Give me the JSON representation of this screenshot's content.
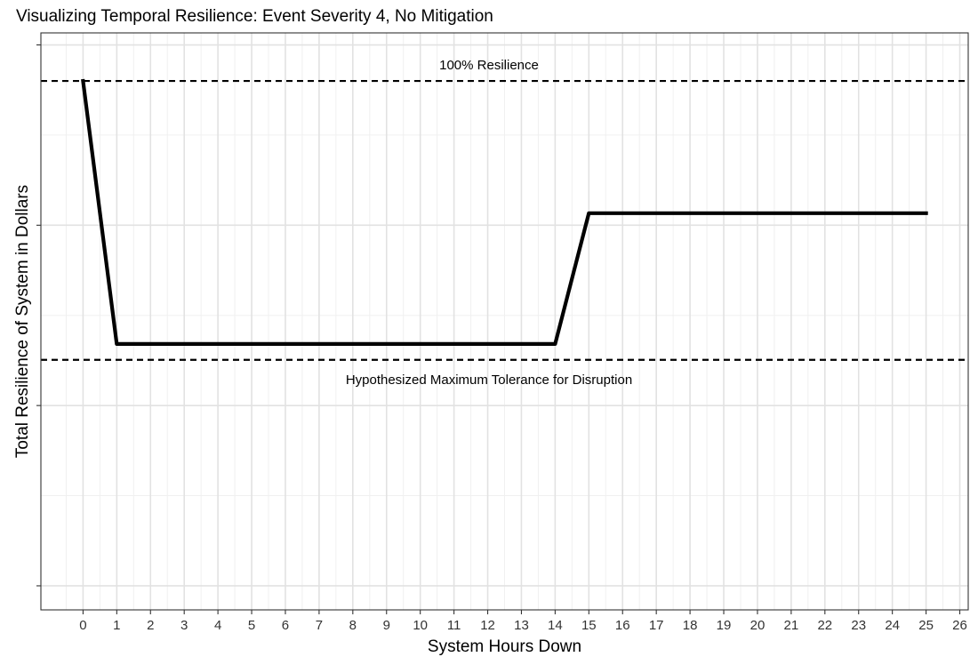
{
  "chart_data": {
    "type": "line",
    "title": "Visualizing Temporal Resilience: Event Severity 4, No Mitigation",
    "xlabel": "System Hours Down",
    "ylabel": "Total Resilience of System in Dollars",
    "x_ticks": [
      0,
      1,
      2,
      3,
      4,
      5,
      6,
      7,
      8,
      9,
      10,
      11,
      12,
      13,
      14,
      15,
      16,
      17,
      18,
      19,
      20,
      21,
      22,
      23,
      24,
      25,
      26
    ],
    "xlim": [
      -1.25,
      26.25
    ],
    "ylim": [
      -0.05,
      1.15
    ],
    "y_major_ticks": [
      0,
      0.375,
      0.75,
      1.125
    ],
    "y_tick_labels_shown": false,
    "grid": true,
    "series": [
      {
        "x": [
          0,
          1,
          14,
          15,
          25
        ],
        "y": [
          1.05,
          0.503,
          0.503,
          0.775,
          0.775
        ],
        "color": "#000000"
      }
    ],
    "reference_lines": [
      {
        "y": 1.05,
        "style": "dashed",
        "label": "100% Resilience"
      },
      {
        "y": 0.47,
        "style": "dashed",
        "label": "Hypothesized Maximum Tolerance for Disruption"
      }
    ]
  }
}
